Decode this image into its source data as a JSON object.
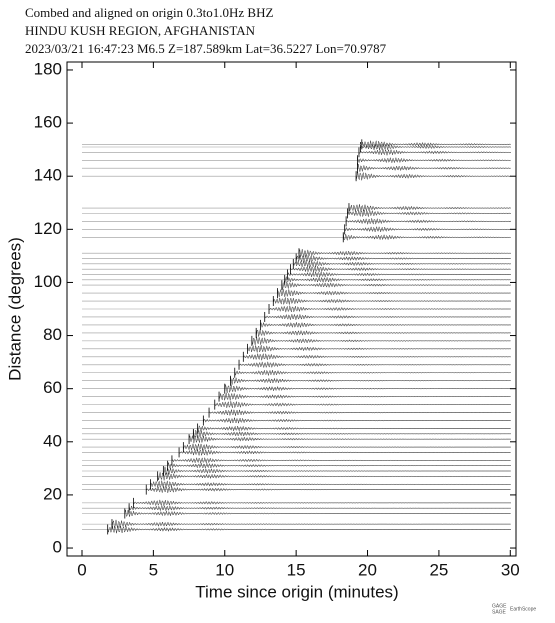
{
  "chart_data": {
    "type": "record-section",
    "title": [
      "Combed and aligned on origin  0.3to1.0Hz  BHZ",
      "HINDU KUSH REGION, AFGHANISTAN",
      "2023/03/21  16:47:23  M6.5  Z=187.589km Lat=36.5227 Lon=70.9787"
    ],
    "x_label": "Time since origin (minutes)",
    "y_label": "Distance (degrees)",
    "xlim": [
      -1.05,
      30.4
    ],
    "ylim": [
      -3,
      183
    ],
    "xticks": [
      0,
      5,
      10,
      15,
      20,
      25,
      30
    ],
    "yticks": [
      0,
      20,
      40,
      60,
      80,
      100,
      120,
      140,
      160,
      180
    ],
    "color": "#333333",
    "distance": [
      7,
      9,
      13,
      15,
      17,
      22,
      24,
      27,
      29,
      31,
      33,
      36,
      38,
      41,
      43,
      45,
      48,
      51,
      54,
      57,
      60,
      63,
      66,
      69,
      72,
      75,
      78,
      81,
      84,
      87,
      90,
      93,
      96,
      99,
      101,
      103,
      105,
      107,
      109,
      111,
      117,
      120,
      123,
      126,
      128,
      140,
      143,
      146,
      149,
      151,
      152
    ],
    "arrival": [
      1.8,
      2.1,
      3.0,
      3.3,
      3.6,
      4.5,
      4.8,
      5.3,
      5.7,
      6.0,
      6.3,
      6.8,
      7.1,
      7.5,
      7.8,
      8.1,
      8.5,
      8.9,
      9.3,
      9.6,
      10.0,
      10.4,
      10.7,
      11.0,
      11.3,
      11.6,
      11.9,
      12.2,
      12.5,
      12.8,
      13.1,
      13.4,
      13.7,
      14.0,
      14.2,
      14.4,
      14.6,
      14.8,
      15.0,
      15.2,
      18.3,
      18.4,
      18.5,
      18.6,
      18.7,
      19.2,
      19.3,
      19.3,
      19.4,
      19.5,
      19.6
    ],
    "logos": [
      "GAGE",
      "SAGE",
      "EarthScope"
    ]
  }
}
